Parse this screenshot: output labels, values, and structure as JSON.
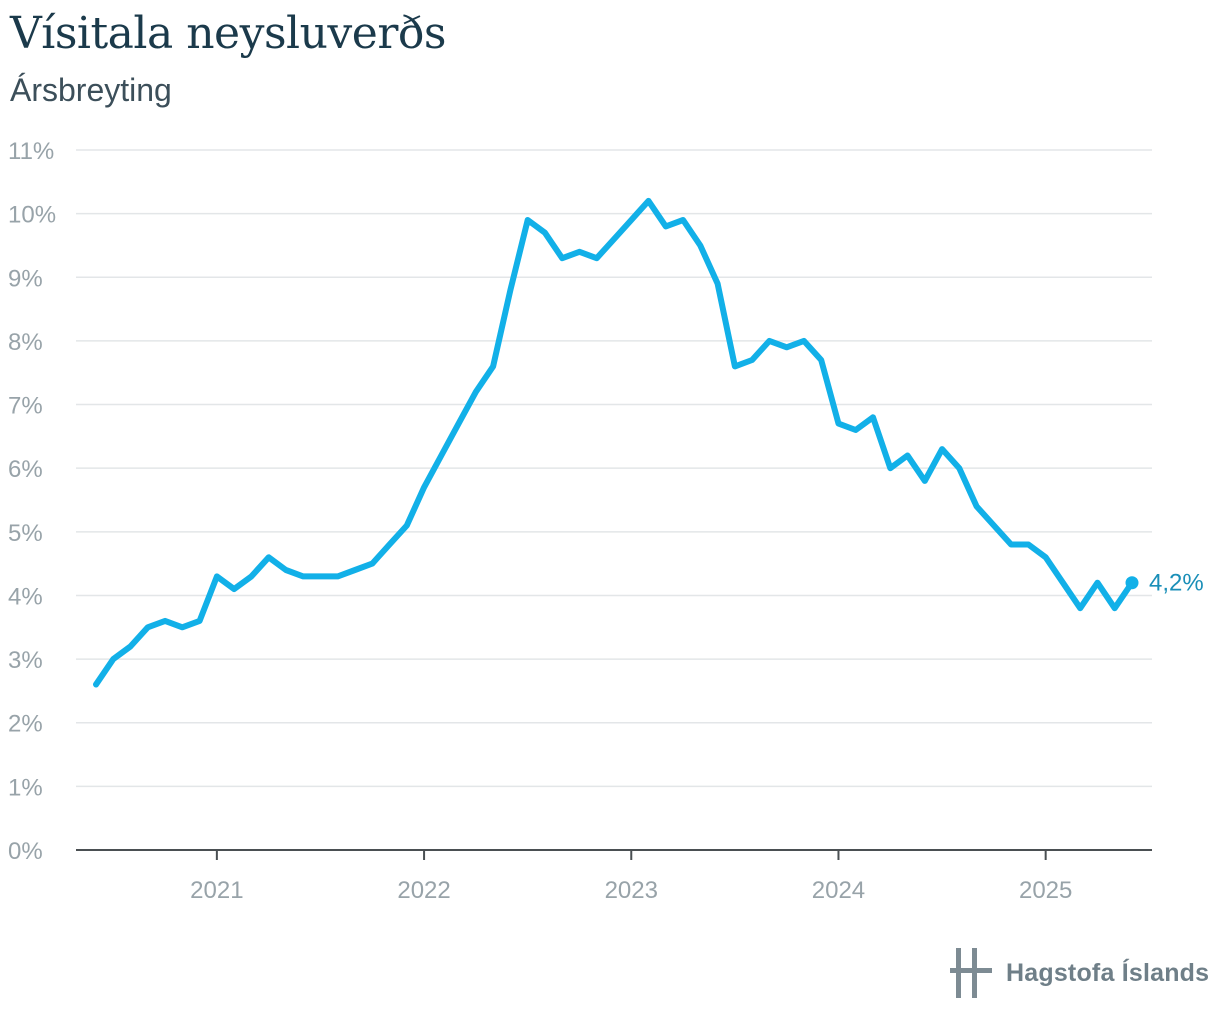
{
  "header": {
    "title": "Vísitala neysluverðs",
    "subtitle": "Ársbreyting"
  },
  "logo": {
    "text": "Hagstofa Íslands",
    "icon": "hagstofa-logo-icon"
  },
  "colors": {
    "line": "#12b0e8",
    "end_label": "#1a8fb8",
    "grid": "#e3e6e8",
    "axis": "#4a4f52",
    "tick_text": "#98a3a9"
  },
  "chart_data": {
    "type": "line",
    "title": "Vísitala neysluverðs",
    "subtitle": "Ársbreyting",
    "xlabel": "",
    "ylabel": "",
    "ylim": [
      0,
      11
    ],
    "xlim": [
      "2020-05",
      "2025-06"
    ],
    "yticks": [
      0,
      1,
      2,
      3,
      4,
      5,
      6,
      7,
      8,
      9,
      10,
      11
    ],
    "ytick_labels": [
      "0%",
      "1%",
      "2%",
      "3%",
      "4%",
      "5%",
      "6%",
      "7%",
      "8%",
      "9%",
      "10%",
      "11%"
    ],
    "xtick_labels": [
      "2021",
      "2022",
      "2023",
      "2024",
      "2025"
    ],
    "grid": true,
    "series": [
      {
        "x": [
          "2020-06",
          "2020-07",
          "2020-08",
          "2020-09",
          "2020-10",
          "2020-11",
          "2020-12",
          "2021-01",
          "2021-02",
          "2021-03",
          "2021-04",
          "2021-05",
          "2021-06",
          "2021-07",
          "2021-08",
          "2021-09",
          "2021-10",
          "2021-11",
          "2021-12",
          "2022-01",
          "2022-02",
          "2022-03",
          "2022-04",
          "2022-05",
          "2022-06",
          "2022-07",
          "2022-08",
          "2022-09",
          "2022-10",
          "2022-11",
          "2022-12",
          "2023-01",
          "2023-02",
          "2023-03",
          "2023-04",
          "2023-05",
          "2023-06",
          "2023-07",
          "2023-08",
          "2023-09",
          "2023-10",
          "2023-11",
          "2023-12",
          "2024-01",
          "2024-02",
          "2024-03",
          "2024-04",
          "2024-05",
          "2024-06",
          "2024-07",
          "2024-08",
          "2024-09",
          "2024-10",
          "2024-11",
          "2024-12",
          "2025-01",
          "2025-02",
          "2025-03",
          "2025-04",
          "2025-05",
          "2025-06"
        ],
        "values": [
          2.6,
          3.0,
          3.2,
          3.5,
          3.6,
          3.5,
          3.6,
          4.3,
          4.1,
          4.3,
          4.6,
          4.4,
          4.3,
          4.3,
          4.3,
          4.4,
          4.5,
          4.8,
          5.1,
          5.7,
          6.2,
          6.7,
          7.2,
          7.6,
          8.8,
          9.9,
          9.7,
          9.3,
          9.4,
          9.3,
          9.6,
          9.9,
          10.2,
          9.8,
          9.9,
          9.5,
          8.9,
          7.6,
          7.7,
          8.0,
          7.9,
          8.0,
          7.7,
          6.7,
          6.6,
          6.8,
          6.0,
          6.2,
          5.8,
          6.3,
          6.0,
          5.4,
          5.1,
          4.8,
          4.8,
          4.6,
          4.2,
          3.8,
          4.2,
          3.8,
          4.2
        ]
      }
    ],
    "end_label": "4,2%"
  }
}
